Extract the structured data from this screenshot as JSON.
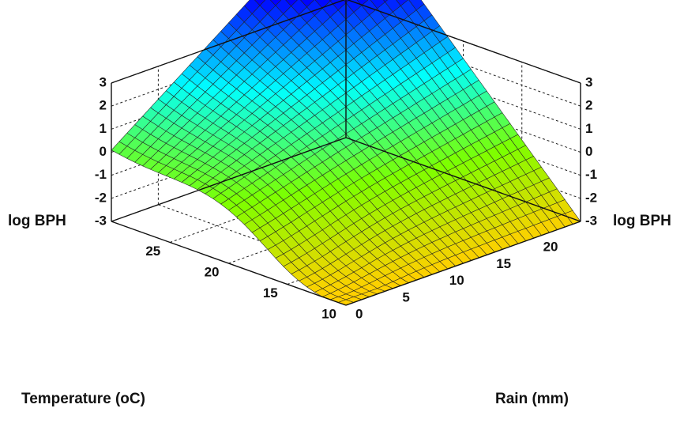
{
  "chart_data": {
    "type": "surface3d",
    "title": "",
    "z_axis": {
      "label": "log BPH",
      "range": [
        -3,
        3
      ],
      "ticks": [
        "-3",
        "-2",
        "-1",
        "0",
        "1",
        "2",
        "3"
      ]
    },
    "temperature_axis": {
      "label": "Temperature (oC)",
      "range": [
        10,
        30
      ],
      "ticks": [
        "10",
        "15",
        "20",
        "25"
      ]
    },
    "rain_axis": {
      "label": "Rain (mm)",
      "range": [
        0,
        25
      ],
      "ticks": [
        "0",
        "5",
        "10",
        "15",
        "20"
      ]
    },
    "surface_corners": [
      {
        "temperature": 30,
        "rain": 0,
        "log_bph": 0
      },
      {
        "temperature": 10,
        "rain": 0,
        "log_bph": -3
      },
      {
        "temperature": 30,
        "rain": 25,
        "log_bph": 7.5
      },
      {
        "temperature": 10,
        "rain": 25,
        "log_bph": -3
      }
    ],
    "colormap": [
      "#ffd000",
      "#7cff00",
      "#00ffff",
      "#0000ff",
      "#ff00ff"
    ],
    "grid": true
  }
}
